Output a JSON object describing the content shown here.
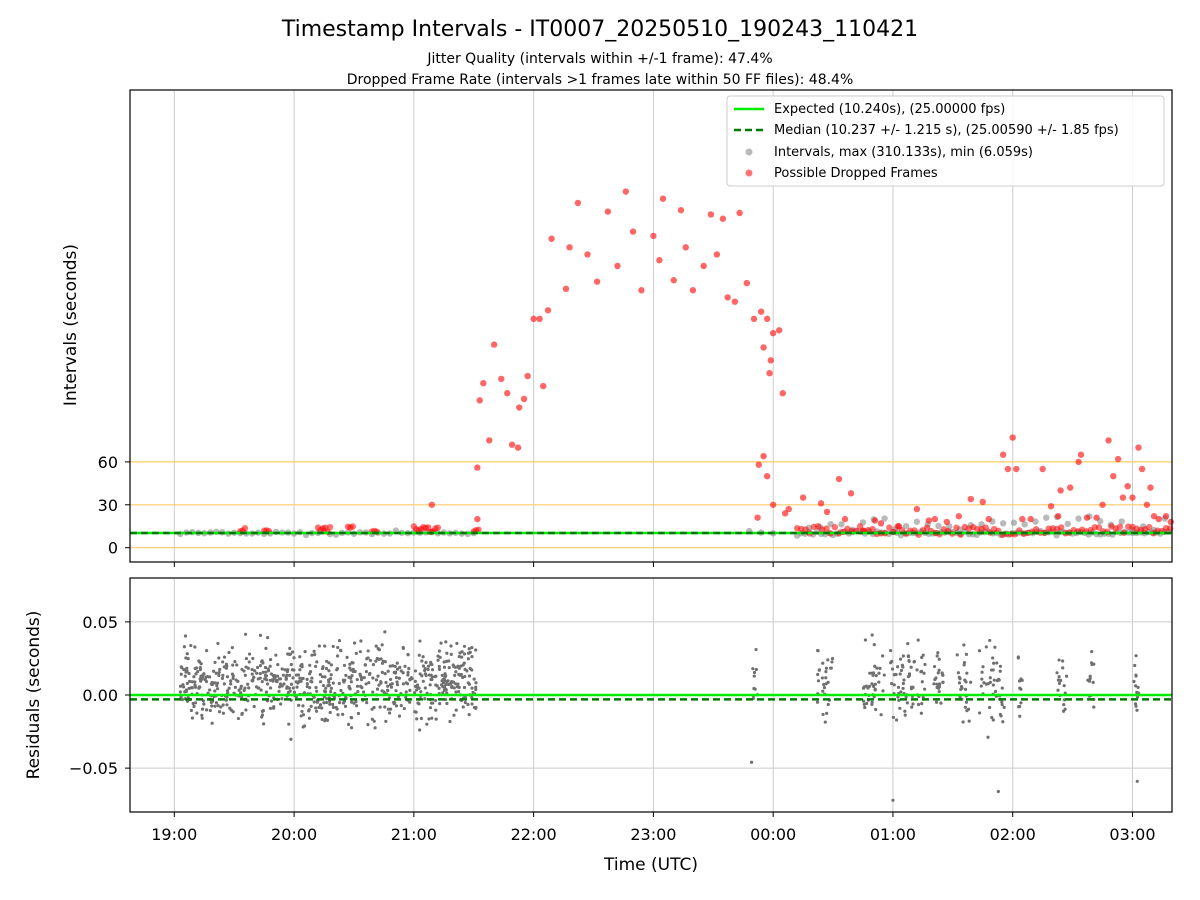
{
  "figure": {
    "title": "Timestamp Intervals - IT0007_20250510_190243_110421",
    "subtitle_line1": "Jitter Quality (intervals within +/-1 frame): 47.4%",
    "subtitle_line2": "Dropped Frame Rate (intervals >1 frames late within 50 FF files): 48.4%"
  },
  "colors": {
    "expected": "#00ee00",
    "median": "#007a00",
    "intervals": "#808080",
    "dropped": "#ff0000",
    "threshold_lines": "#ffcc66",
    "grid": "#cccccc"
  },
  "chart_data": [
    {
      "type": "scatter",
      "name": "intervals",
      "xlabel": "",
      "ylabel": "Intervals (seconds)",
      "x_ticks": [
        "19:00",
        "20:00",
        "21:00",
        "22:00",
        "23:00",
        "00:00",
        "01:00",
        "02:00",
        "03:00"
      ],
      "x_range_hours": [
        18.63,
        27.33
      ],
      "y_ticks": [
        0,
        30,
        60
      ],
      "y_range": [
        -10,
        320
      ],
      "grid": "vertical",
      "threshold_lines": [
        0,
        30,
        60
      ],
      "legend_position": "top-right",
      "legend": [
        "Expected (10.240s), (25.00000 fps)",
        "Median (10.237 +/- 1.215 s), (25.00590 +/- 1.85 fps)",
        "Intervals, max (310.133s), min (6.059s)",
        "Possible Dropped Frames"
      ],
      "expected_value": 10.24,
      "median_value": 10.237,
      "dropped_points": [
        [
          21.15,
          30
        ],
        [
          21.53,
          56
        ],
        [
          21.53,
          20
        ],
        [
          21.55,
          103
        ],
        [
          21.58,
          115
        ],
        [
          21.63,
          75
        ],
        [
          21.67,
          142
        ],
        [
          21.73,
          118
        ],
        [
          21.78,
          108
        ],
        [
          21.82,
          72
        ],
        [
          21.87,
          70
        ],
        [
          21.88,
          98
        ],
        [
          21.92,
          104
        ],
        [
          21.95,
          120
        ],
        [
          22.0,
          160
        ],
        [
          22.05,
          160
        ],
        [
          22.08,
          113
        ],
        [
          22.12,
          166
        ],
        [
          22.15,
          216
        ],
        [
          22.27,
          181
        ],
        [
          22.3,
          210
        ],
        [
          22.37,
          241
        ],
        [
          22.45,
          205
        ],
        [
          22.53,
          186
        ],
        [
          22.62,
          235
        ],
        [
          22.7,
          197
        ],
        [
          22.77,
          249
        ],
        [
          22.83,
          221
        ],
        [
          22.9,
          180
        ],
        [
          23.0,
          218
        ],
        [
          23.05,
          201
        ],
        [
          23.08,
          244
        ],
        [
          23.17,
          187
        ],
        [
          23.23,
          236
        ],
        [
          23.27,
          210
        ],
        [
          23.33,
          180
        ],
        [
          23.42,
          197
        ],
        [
          23.48,
          233
        ],
        [
          23.53,
          205
        ],
        [
          23.58,
          230
        ],
        [
          23.62,
          175
        ],
        [
          23.68,
          172
        ],
        [
          23.72,
          234
        ],
        [
          23.78,
          185
        ],
        [
          23.84,
          160
        ],
        [
          23.9,
          165
        ],
        [
          23.92,
          140
        ],
        [
          23.95,
          160
        ],
        [
          23.97,
          122
        ],
        [
          23.98,
          131
        ],
        [
          24.0,
          150
        ],
        [
          24.05,
          152
        ],
        [
          24.08,
          108
        ],
        [
          23.87,
          21
        ],
        [
          23.88,
          58
        ],
        [
          23.92,
          64
        ],
        [
          23.95,
          50
        ],
        [
          24.0,
          30
        ],
        [
          24.1,
          24
        ],
        [
          24.13,
          27
        ],
        [
          24.25,
          35
        ],
        [
          24.4,
          31
        ],
        [
          24.45,
          25
        ],
        [
          24.55,
          48
        ],
        [
          24.65,
          38
        ],
        [
          24.6,
          20
        ],
        [
          24.75,
          12
        ],
        [
          24.85,
          19
        ],
        [
          24.9,
          17
        ],
        [
          25.05,
          15
        ],
        [
          25.2,
          27
        ],
        [
          25.3,
          19
        ],
        [
          25.35,
          20
        ],
        [
          25.45,
          18
        ],
        [
          25.55,
          22
        ],
        [
          25.65,
          34
        ],
        [
          25.75,
          32
        ],
        [
          25.8,
          20
        ],
        [
          25.92,
          65
        ],
        [
          25.96,
          55
        ],
        [
          26.0,
          77
        ],
        [
          26.03,
          55
        ],
        [
          26.08,
          20
        ],
        [
          26.15,
          20
        ],
        [
          26.25,
          55
        ],
        [
          26.32,
          29
        ],
        [
          26.38,
          22
        ],
        [
          26.4,
          40
        ],
        [
          26.48,
          42
        ],
        [
          26.55,
          60
        ],
        [
          26.57,
          65
        ],
        [
          26.62,
          21
        ],
        [
          26.7,
          21
        ],
        [
          26.75,
          30
        ],
        [
          26.8,
          75
        ],
        [
          26.84,
          50
        ],
        [
          26.88,
          62
        ],
        [
          26.92,
          35
        ],
        [
          26.96,
          43
        ],
        [
          27.0,
          35
        ],
        [
          27.05,
          70
        ],
        [
          27.08,
          55
        ],
        [
          27.12,
          30
        ],
        [
          27.15,
          42
        ],
        [
          27.18,
          22
        ],
        [
          27.22,
          20
        ],
        [
          27.28,
          22
        ],
        [
          27.32,
          18
        ]
      ]
    },
    {
      "type": "scatter",
      "name": "residuals",
      "xlabel": "Time (UTC)",
      "ylabel": "Residuals (seconds)",
      "x_ticks": [
        "19:00",
        "20:00",
        "21:00",
        "22:00",
        "23:00",
        "00:00",
        "01:00",
        "02:00",
        "03:00"
      ],
      "x_range_hours": [
        18.63,
        27.33
      ],
      "y_ticks": [
        "0.05",
        "0.00",
        "−0.05"
      ],
      "y_tick_values": [
        0.05,
        0.0,
        -0.05
      ],
      "y_range": [
        -0.08,
        0.08
      ],
      "grid": "both",
      "expected_residual": 0.0,
      "median_residual": -0.003,
      "clusters_hours": [
        [
          19.05,
          21.52
        ],
        [
          23.83,
          23.87
        ],
        [
          24.37,
          24.5
        ],
        [
          24.75,
          24.93
        ],
        [
          24.97,
          25.27
        ],
        [
          25.33,
          25.43
        ],
        [
          25.53,
          25.65
        ],
        [
          25.72,
          25.93
        ],
        [
          26.03,
          26.08
        ],
        [
          26.37,
          26.45
        ],
        [
          26.62,
          26.68
        ],
        [
          27.0,
          27.06
        ]
      ]
    }
  ]
}
